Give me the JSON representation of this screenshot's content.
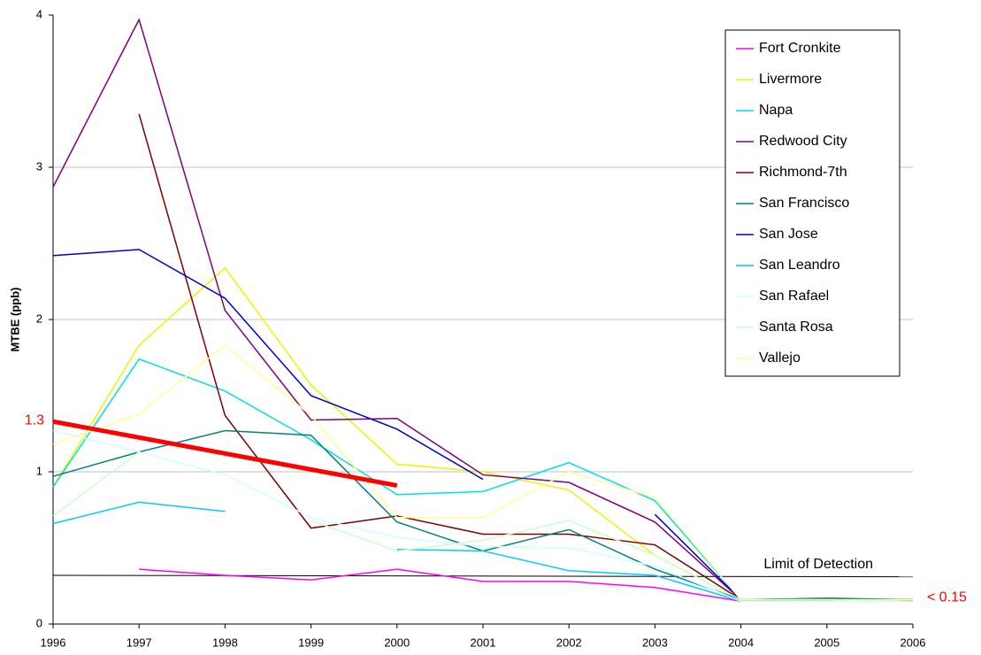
{
  "chart_data": {
    "type": "line",
    "y_label": "MTBE (ppb)",
    "x": [
      1996,
      1997,
      1998,
      1999,
      2000,
      2001,
      2002,
      2003,
      2004,
      2005,
      2006
    ],
    "xlim": [
      1996,
      2006
    ],
    "xticks": [
      1996,
      1997,
      1998,
      1999,
      2000,
      2001,
      2002,
      2003,
      2004,
      2005,
      2006
    ],
    "ylim": [
      0,
      4
    ],
    "yticks": [
      0,
      1,
      2,
      3,
      4
    ],
    "grid": true,
    "legend": "top-right",
    "series": [
      {
        "name": "Fort Cronkite",
        "color": "#ff00ff",
        "values": [
          null,
          0.36,
          0.32,
          0.29,
          0.36,
          0.28,
          0.28,
          0.24,
          0.15,
          0.16,
          0.16
        ]
      },
      {
        "name": "Livermore",
        "color": "#f2f200",
        "values": [
          0.9,
          1.83,
          2.34,
          1.57,
          1.05,
          1.0,
          0.88,
          0.45,
          0.16,
          0.16,
          0.16
        ]
      },
      {
        "name": "Napa",
        "color": "#00e0e0",
        "values": [
          0.9,
          1.74,
          1.53,
          1.21,
          0.85,
          0.87,
          1.06,
          0.81,
          0.16,
          0.15,
          0.15
        ]
      },
      {
        "name": "Redwood City",
        "color": "#800080",
        "values": [
          2.87,
          3.97,
          2.06,
          1.34,
          1.35,
          0.98,
          0.93,
          0.67,
          0.16,
          0.16,
          0.16
        ]
      },
      {
        "name": "Richmond-7th",
        "color": "#800000",
        "values": [
          null,
          3.35,
          1.37,
          0.63,
          0.71,
          0.59,
          0.59,
          0.52,
          0.16,
          0.16,
          0.16
        ]
      },
      {
        "name": "San Francisco",
        "color": "#008080",
        "values": [
          0.97,
          1.13,
          1.27,
          1.24,
          0.67,
          0.48,
          0.62,
          0.36,
          0.16,
          0.17,
          0.16
        ]
      },
      {
        "name": "San Jose",
        "color": "#0000cc",
        "values": [
          2.42,
          2.46,
          2.14,
          1.5,
          1.28,
          0.95,
          null,
          0.72,
          0.16,
          0.16,
          0.16
        ]
      },
      {
        "name": "San Leandro",
        "color": "#00ccff",
        "values": [
          0.66,
          0.8,
          0.74,
          null,
          0.49,
          0.48,
          0.35,
          0.32,
          0.15,
          0.15,
          0.15
        ]
      },
      {
        "name": "San Rafael",
        "color": "#ccffff",
        "values": [
          1.27,
          1.13,
          0.98,
          0.7,
          0.57,
          0.51,
          0.5,
          0.38,
          0.15,
          0.15,
          0.15
        ]
      },
      {
        "name": "Santa Rosa",
        "color": "#ccffcc",
        "values": [
          0.71,
          1.13,
          null,
          0.68,
          0.48,
          0.55,
          0.68,
          0.45,
          0.16,
          0.16,
          0.15
        ]
      },
      {
        "name": "Vallejo",
        "color": "#ffff99",
        "values": [
          1.18,
          1.38,
          1.83,
          1.37,
          0.7,
          0.7,
          1.0,
          0.83,
          0.16,
          0.16,
          0.16
        ]
      }
    ],
    "trend": {
      "label": "1.3",
      "color": "#ff0000",
      "x": [
        1996,
        2000
      ],
      "values": [
        1.33,
        0.91
      ]
    },
    "detection_limit": {
      "label": "Limit of Detection",
      "x": [
        1996,
        2006
      ],
      "values": [
        0.32,
        0.31
      ]
    },
    "floor_label": {
      "label": "< 0.15",
      "color": "#ff0000",
      "value": 0.15
    }
  }
}
